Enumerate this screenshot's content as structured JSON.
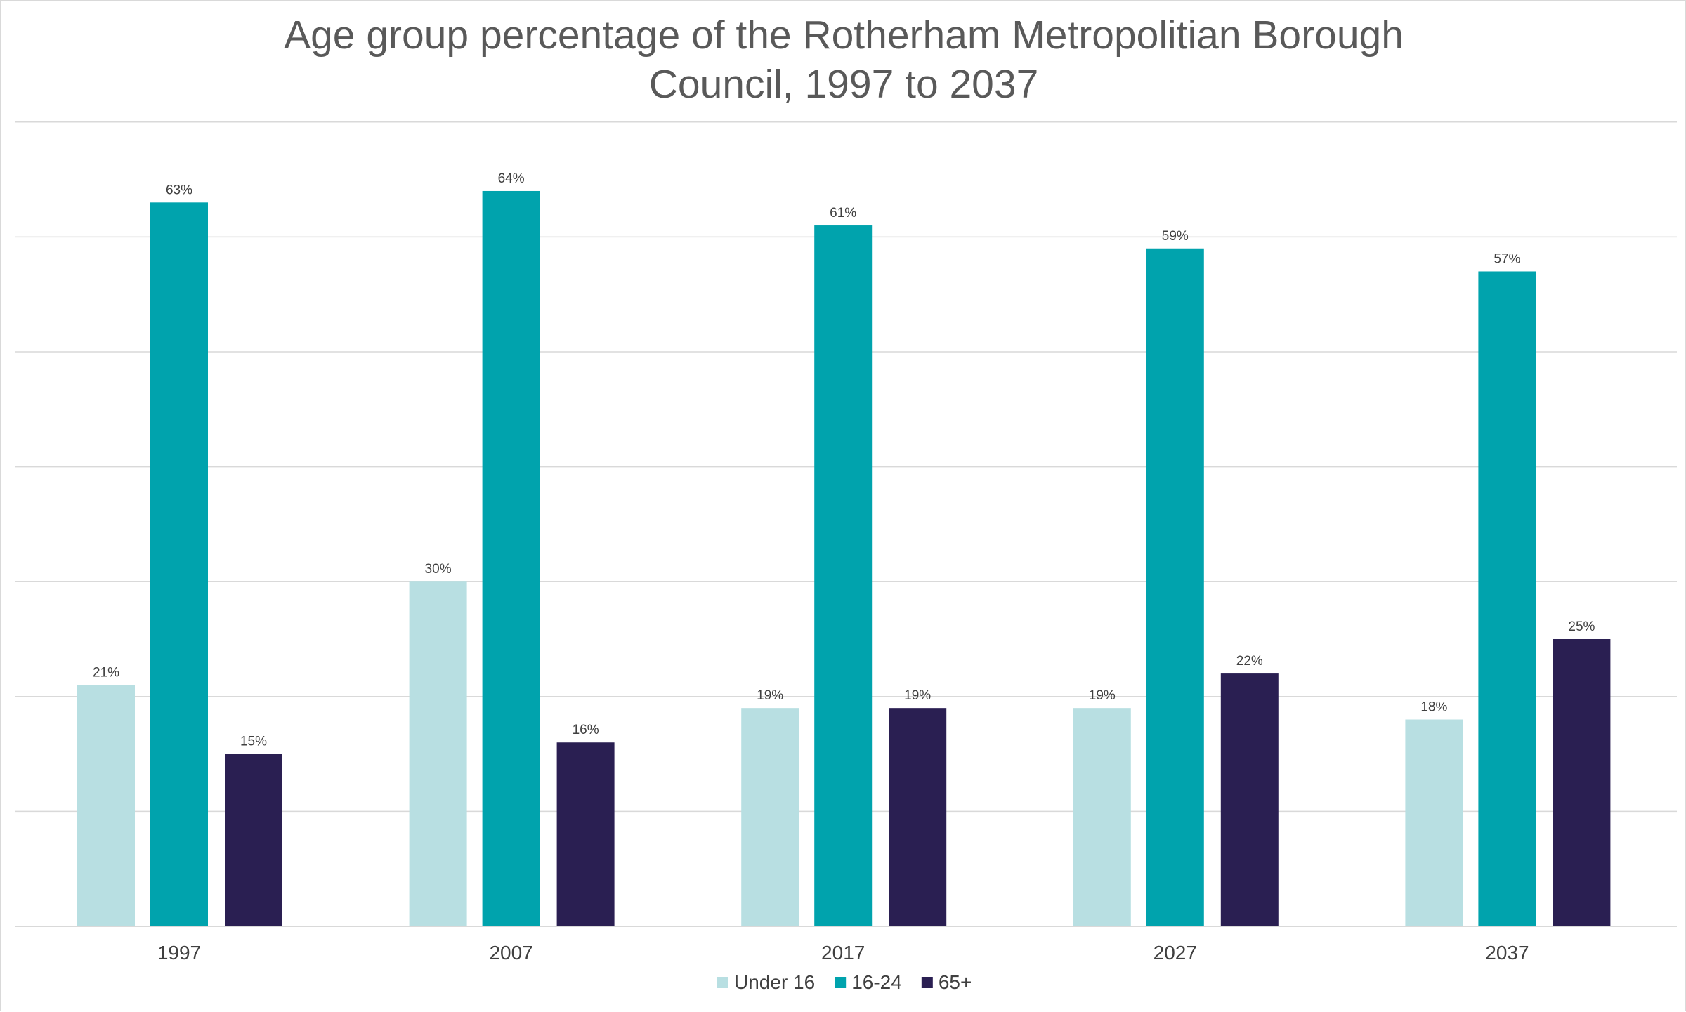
{
  "chart_data": {
    "type": "bar",
    "title_lines": [
      "Age group percentage of the Rotherham Metropolitian Borough",
      "Council, 1997 to 2037"
    ],
    "categories": [
      "1997",
      "2007",
      "2017",
      "2027",
      "2037"
    ],
    "series": [
      {
        "name": "Under 16",
        "color": "#b8dfe2",
        "values": [
          21,
          30,
          19,
          19,
          18
        ]
      },
      {
        "name": "16-24",
        "color": "#00a3ad",
        "values": [
          63,
          64,
          61,
          59,
          57
        ]
      },
      {
        "name": "65+",
        "color": "#2a1f52",
        "values": [
          15,
          16,
          19,
          22,
          25
        ]
      }
    ],
    "value_suffix": "%",
    "ylim": [
      0,
      70
    ],
    "grid": true,
    "y_axis_labels_shown": false,
    "legend_position": "bottom",
    "gridline_color": "#d9d9d9",
    "axis_color": "#d9d9d9"
  }
}
